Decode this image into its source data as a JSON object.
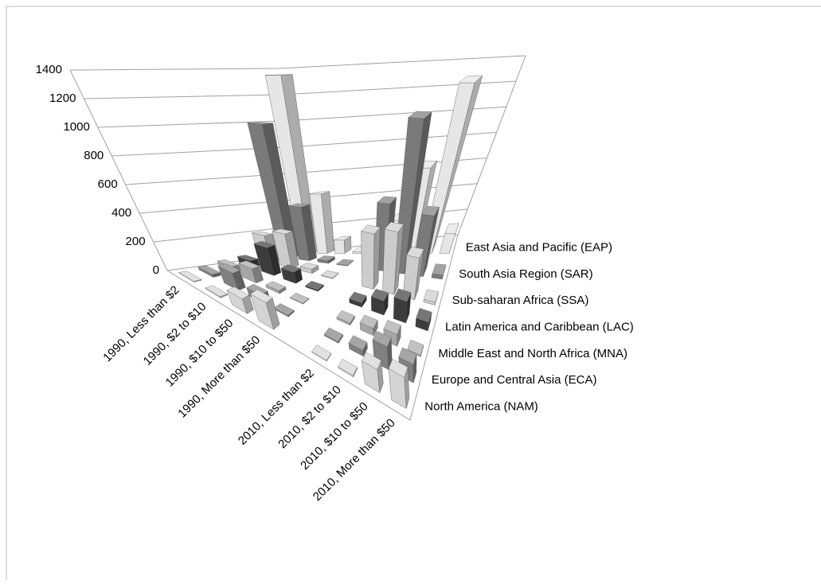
{
  "chart_data": {
    "type": "bar3d",
    "categories": [
      "1990, Less than $2",
      "1990, $2 to $10",
      "1990, $10 to $50",
      "1990, More than $50",
      null,
      "2010, Less than $2",
      "2010, $2 to $10",
      "2010, $10 to $50",
      "2010, More than $50"
    ],
    "series": [
      {
        "name": "North America (NAM)",
        "color": "#d4d4d4",
        "values": [
          5,
          8,
          100,
          180,
          null,
          5,
          10,
          150,
          200
        ]
      },
      {
        "name": "Europe and Central Asia (ECA)",
        "color": "#808080",
        "values": [
          20,
          120,
          60,
          10,
          null,
          10,
          40,
          150,
          120
        ]
      },
      {
        "name": "Middle East and North Africa (MNA)",
        "color": "#a6a6a6",
        "values": [
          40,
          100,
          20,
          5,
          null,
          15,
          50,
          80,
          10
        ]
      },
      {
        "name": "Latin America and Caribbean (LAC)",
        "color": "#3c3c3c",
        "values": [
          50,
          200,
          80,
          10,
          null,
          30,
          100,
          150,
          60
        ]
      },
      {
        "name": "Sub-saharan Africa (SSA)",
        "color": "#cccccc",
        "values": [
          200,
          250,
          30,
          5,
          null,
          400,
          450,
          300,
          20
        ]
      },
      {
        "name": "South Asia Region (SAR)",
        "color": "#7a7a7a",
        "values": [
          1000,
          400,
          20,
          5,
          null,
          500,
          1150,
          450,
          30
        ]
      },
      {
        "name": "East Asia and Pacific (EAP)",
        "color": "#e6e6e6",
        "values": [
          1350,
          450,
          100,
          10,
          null,
          250,
          650,
          1300,
          150
        ]
      }
    ],
    "ylim": [
      0,
      1400
    ],
    "yticks": [
      0,
      200,
      400,
      600,
      800,
      1000,
      1200,
      1400
    ],
    "grid": true
  }
}
